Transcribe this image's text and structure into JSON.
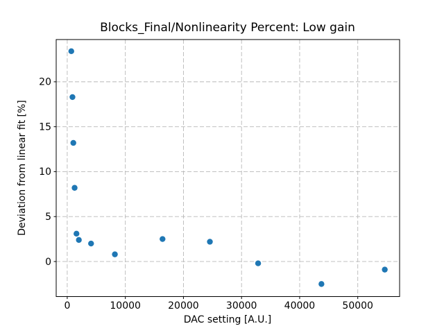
{
  "window": {
    "background": "#ffffff"
  },
  "chart_data": {
    "type": "scatter",
    "title": "Blocks_Final/Nonlinearity Percent: Low gain",
    "xlabel": "DAC setting [A.U.]",
    "ylabel": "Deviation from linear fit [%]",
    "xlim": [
      -1900,
      57200
    ],
    "ylim": [
      -3.9,
      24.7
    ],
    "xticks": [
      0,
      10000,
      20000,
      30000,
      40000,
      50000
    ],
    "yticks": [
      0,
      5,
      10,
      15,
      20
    ],
    "grid": true,
    "grid_style": "dashed",
    "grid_color": "#b8b8b8",
    "legend": false,
    "marker_color": "#1f77b4",
    "marker_radius_px": 4.2,
    "points": [
      {
        "x": 700,
        "y": 23.4
      },
      {
        "x": 900,
        "y": 18.3
      },
      {
        "x": 1050,
        "y": 13.2
      },
      {
        "x": 1270,
        "y": 8.2
      },
      {
        "x": 1590,
        "y": 3.1
      },
      {
        "x": 2000,
        "y": 2.4
      },
      {
        "x": 4100,
        "y": 2.0
      },
      {
        "x": 8200,
        "y": 0.8
      },
      {
        "x": 16400,
        "y": 2.5
      },
      {
        "x": 24550,
        "y": 2.2
      },
      {
        "x": 32850,
        "y": -0.2
      },
      {
        "x": 43750,
        "y": -2.5
      },
      {
        "x": 54650,
        "y": -0.9
      }
    ]
  }
}
